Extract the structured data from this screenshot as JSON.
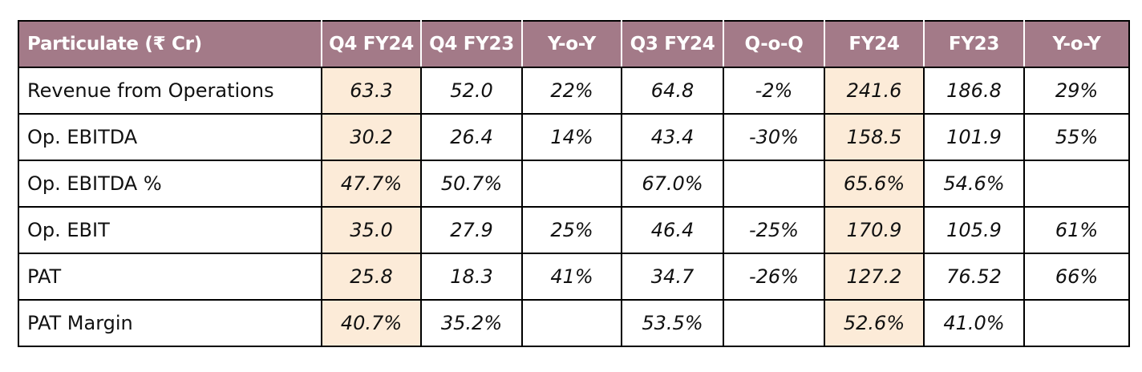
{
  "table": {
    "headers": [
      "Particulate  (₹ Cr)",
      "Q4 FY24",
      "Q4 FY23",
      "Y-o-Y",
      "Q3 FY24",
      "Q-o-Q",
      "FY24",
      "FY23",
      "Y-o-Y"
    ],
    "highlight_color": "#fcebd8",
    "header_color": "#a37a88",
    "rows": [
      {
        "label": "Revenue from Operations",
        "cells": [
          "63.3",
          "52.0",
          "22%",
          "64.8",
          "-2%",
          "241.6",
          "186.8",
          "29%"
        ]
      },
      {
        "label": "Op. EBITDA",
        "cells": [
          "30.2",
          "26.4",
          "14%",
          "43.4",
          "-30%",
          "158.5",
          "101.9",
          "55%"
        ]
      },
      {
        "label": "Op. EBITDA %",
        "cells": [
          "47.7%",
          "50.7%",
          "",
          "67.0%",
          "",
          "65.6%",
          "54.6%",
          ""
        ]
      },
      {
        "label": "Op. EBIT",
        "cells": [
          "35.0",
          "27.9",
          "25%",
          "46.4",
          "-25%",
          "170.9",
          "105.9",
          "61%"
        ]
      },
      {
        "label": "PAT",
        "cells": [
          "25.8",
          "18.3",
          "41%",
          "34.7",
          "-26%",
          "127.2",
          "76.52",
          "66%"
        ]
      },
      {
        "label": "PAT Margin",
        "cells": [
          "40.7%",
          "35.2%",
          "",
          "53.5%",
          "",
          "52.6%",
          "41.0%",
          ""
        ]
      }
    ]
  }
}
